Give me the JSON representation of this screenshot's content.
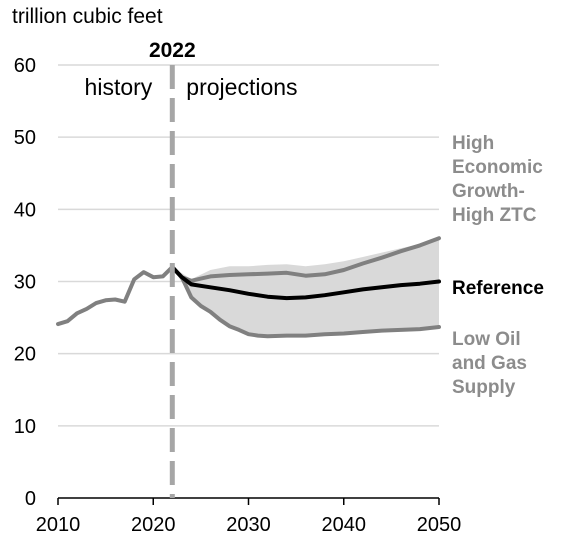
{
  "chart_data": {
    "type": "line",
    "title": "",
    "ylabel": "trillion cubic feet",
    "xlabel": "",
    "xlim": [
      2010,
      2050
    ],
    "ylim": [
      0,
      60
    ],
    "x_ticks": [
      "2010",
      "2020",
      "2030",
      "2040",
      "2050"
    ],
    "y_ticks": [
      "0",
      "10",
      "20",
      "30",
      "40",
      "50",
      "60"
    ],
    "grid": true,
    "divider": {
      "year": 2022,
      "label": "2022",
      "left_label": "history",
      "right_label": "projections"
    },
    "series": [
      {
        "name": "History",
        "color": "#808080",
        "x": [
          2010,
          2011,
          2012,
          2013,
          2014,
          2015,
          2016,
          2017,
          2018,
          2019,
          2020,
          2021,
          2022
        ],
        "y": [
          24.1,
          24.5,
          25.6,
          26.2,
          27.0,
          27.4,
          27.5,
          27.2,
          30.3,
          31.3,
          30.6,
          30.7,
          32.0
        ]
      },
      {
        "name": "High Economic Growth-High ZTC",
        "label_lines": [
          "High",
          "Economic",
          "Growth-",
          "High ZTC"
        ],
        "color": "#808080",
        "x": [
          2022,
          2023,
          2024,
          2025,
          2026,
          2028,
          2030,
          2032,
          2034,
          2036,
          2038,
          2040,
          2042,
          2044,
          2046,
          2048,
          2050
        ],
        "y": [
          32.0,
          30.6,
          30.1,
          30.4,
          30.7,
          30.9,
          31.0,
          31.1,
          31.2,
          30.8,
          31.0,
          31.6,
          32.5,
          33.3,
          34.2,
          35.0,
          36.0
        ]
      },
      {
        "name": "Reference",
        "label_lines": [
          "Reference"
        ],
        "color": "#000000",
        "x": [
          2022,
          2023,
          2024,
          2026,
          2028,
          2030,
          2032,
          2034,
          2036,
          2038,
          2040,
          2042,
          2044,
          2046,
          2048,
          2050
        ],
        "y": [
          32.0,
          30.6,
          29.6,
          29.2,
          28.8,
          28.3,
          27.9,
          27.7,
          27.8,
          28.1,
          28.5,
          28.9,
          29.2,
          29.5,
          29.7,
          30.0
        ]
      },
      {
        "name": "Low Oil and Gas Supply",
        "label_lines": [
          "Low Oil",
          "and Gas",
          "Supply"
        ],
        "color": "#808080",
        "x": [
          2022,
          2023,
          2024,
          2025,
          2026,
          2027,
          2028,
          2029,
          2030,
          2031,
          2032,
          2034,
          2036,
          2038,
          2040,
          2042,
          2044,
          2046,
          2048,
          2050
        ],
        "y": [
          32.0,
          30.6,
          27.8,
          26.6,
          25.8,
          24.7,
          23.8,
          23.3,
          22.7,
          22.5,
          22.4,
          22.5,
          22.5,
          22.7,
          22.8,
          23.0,
          23.2,
          23.3,
          23.4,
          23.7
        ]
      }
    ],
    "range_band": {
      "color": "#d9d9d9",
      "x": [
        2022,
        2024,
        2026,
        2028,
        2030,
        2032,
        2034,
        2036,
        2038,
        2040,
        2042,
        2044,
        2046,
        2048,
        2050
      ],
      "upper": [
        32.0,
        30.3,
        31.6,
        32.1,
        32.1,
        32.3,
        32.4,
        32.1,
        32.4,
        32.8,
        33.4,
        34.0,
        34.6,
        35.2,
        36.0
      ],
      "lower": [
        32.0,
        27.8,
        25.8,
        23.8,
        22.7,
        22.4,
        22.5,
        22.5,
        22.7,
        22.8,
        23.0,
        23.2,
        23.3,
        23.4,
        23.7
      ]
    }
  }
}
